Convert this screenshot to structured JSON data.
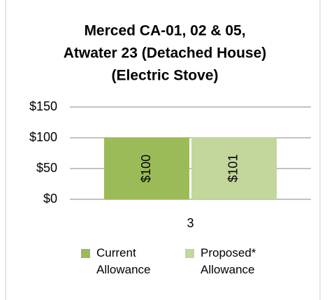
{
  "chart_data": {
    "type": "bar",
    "title": [
      "Merced CA-01, 02 & 05,",
      "Atwater 23 (Detached House)",
      "(Electric Stove)"
    ],
    "categories": [
      "3"
    ],
    "series": [
      {
        "name": "Current Allowance",
        "color": "#9bbb59",
        "values": [
          100
        ],
        "value_labels": [
          "$100"
        ]
      },
      {
        "name": "Proposed* Allowance",
        "color": "#c3d69b",
        "values": [
          101
        ],
        "value_labels": [
          "$101"
        ]
      }
    ],
    "ylim": [
      0,
      150
    ],
    "yticks": [
      {
        "value": 0,
        "label": "$0"
      },
      {
        "value": 50,
        "label": "$50"
      },
      {
        "value": 100,
        "label": "$100"
      },
      {
        "value": 150,
        "label": "$150"
      }
    ],
    "grid": true,
    "legend": "bottom"
  }
}
